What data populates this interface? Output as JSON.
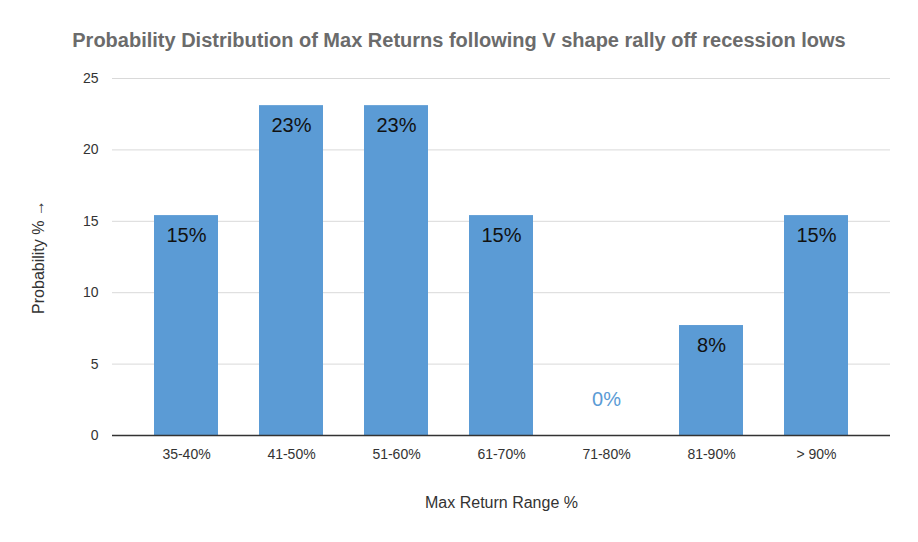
{
  "chart_data": {
    "type": "bar",
    "title": "Probability Distribution of Max Returns following V shape rally off recession lows",
    "x_label": "Max Return Range %",
    "y_label": "Probability %",
    "categories": [
      "35-40%",
      "41-50%",
      "51-60%",
      "61-70%",
      "71-80%",
      "81-90%",
      "> 90%"
    ],
    "values": [
      15.4,
      23.1,
      23.1,
      15.4,
      0,
      7.7,
      15.4
    ],
    "value_labels": [
      "15%",
      "23%",
      "23%",
      "15%",
      "0%",
      "8%",
      "15%"
    ],
    "color": "#5b9bd5",
    "ylim": [
      0,
      25
    ],
    "yticks": [
      0,
      5,
      10,
      15,
      20,
      25
    ],
    "grid": true,
    "data_labels": true
  }
}
